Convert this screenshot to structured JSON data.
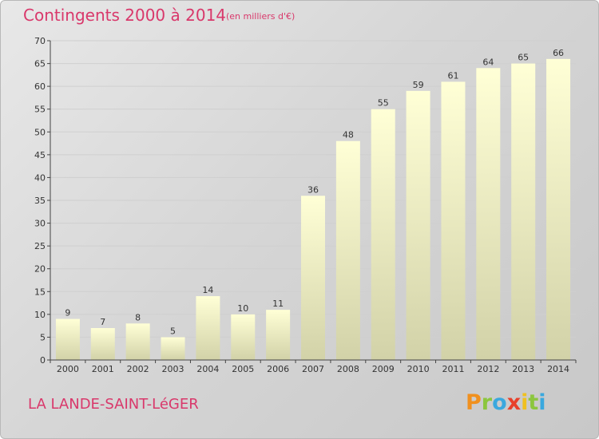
{
  "header": {
    "title": "Contingents 2000 à 2014",
    "unit": "(en milliers d'€)"
  },
  "footer": {
    "commune": "LA LANDE-SAINT-LéGER",
    "brand": "Proxiti",
    "brand_letters": [
      {
        "char": "P",
        "color": "#f0901e"
      },
      {
        "char": "r",
        "color": "#8cc63e"
      },
      {
        "char": "o",
        "color": "#3aa8de"
      },
      {
        "char": "x",
        "color": "#e8402a"
      },
      {
        "char": "i",
        "color": "#f0c020"
      },
      {
        "char": "t",
        "color": "#8cc63e"
      },
      {
        "char": "i",
        "color": "#3aa8de"
      }
    ]
  },
  "colors": {
    "title": "#d9386b",
    "bar_top": "#ffffd6",
    "bar_bottom": "#d2d2a8",
    "axis": "#444444",
    "grid": "#cfcfcf"
  },
  "chart_data": {
    "type": "bar",
    "title": "Contingents 2000 à 2014",
    "subtitle": "(en milliers d'€)",
    "xlabel": "",
    "ylabel": "",
    "categories": [
      "2000",
      "2001",
      "2002",
      "2003",
      "2004",
      "2005",
      "2006",
      "2007",
      "2008",
      "2009",
      "2010",
      "2011",
      "2012",
      "2013",
      "2014"
    ],
    "values": [
      9,
      7,
      8,
      5,
      14,
      10,
      11,
      36,
      48,
      55,
      59,
      61,
      64,
      65,
      66
    ],
    "ylim": [
      0,
      70
    ],
    "yticks": [
      0,
      5,
      10,
      15,
      20,
      25,
      30,
      35,
      40,
      45,
      50,
      55,
      60,
      65,
      70
    ],
    "grid": true,
    "legend": "none"
  }
}
